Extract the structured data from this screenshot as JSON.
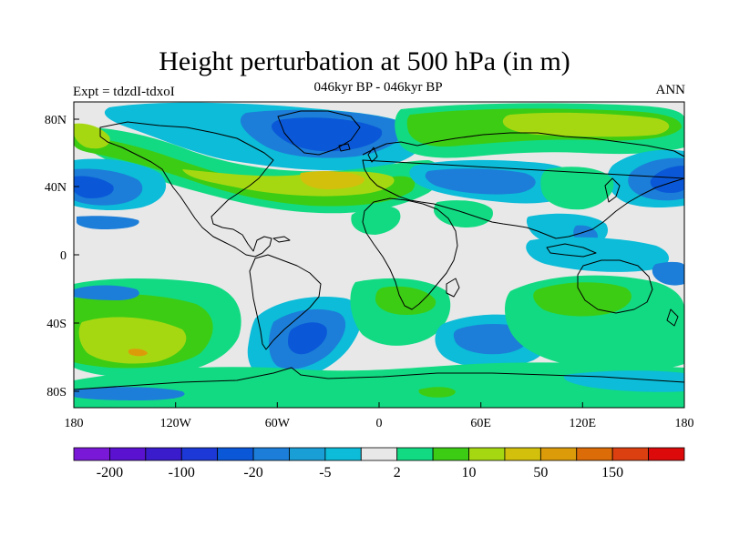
{
  "title": "Height perturbation at 500 hPa (in m)",
  "subtitle": "046kyr BP - 046kyr BP",
  "left_label": "Expt = tdzdI-tdxoI",
  "right_label": "ANN",
  "map": {
    "projection": "cylindrical equidistant",
    "lon_range": [
      -180,
      180
    ],
    "lat_range": [
      -90,
      90
    ],
    "lon_ticks": [
      "180",
      "120W",
      "60W",
      "0",
      "60E",
      "120E",
      "180"
    ],
    "lat_ticks": [
      "80N",
      "40N",
      "0",
      "40S",
      "80S"
    ],
    "background_color": "#e8e8e8",
    "coastline_color": "#000000"
  },
  "colorbar": {
    "colors": [
      "#7a18d8",
      "#5a12d0",
      "#3a1ccc",
      "#1c38d6",
      "#0a58d8",
      "#1c7ed8",
      "#1a9ed6",
      "#0cbcd8",
      "#e8e8e8",
      "#12da82",
      "#3ccc14",
      "#a6d812",
      "#d2c00c",
      "#dc9c0a",
      "#dc6c08",
      "#dc4010",
      "#dc0a0a"
    ],
    "labels": [
      "-200",
      "-100",
      "-20",
      "-5",
      "2",
      "10",
      "50",
      "150"
    ],
    "label_after_box": [
      1,
      3,
      5,
      7,
      9,
      11,
      13,
      15
    ]
  }
}
